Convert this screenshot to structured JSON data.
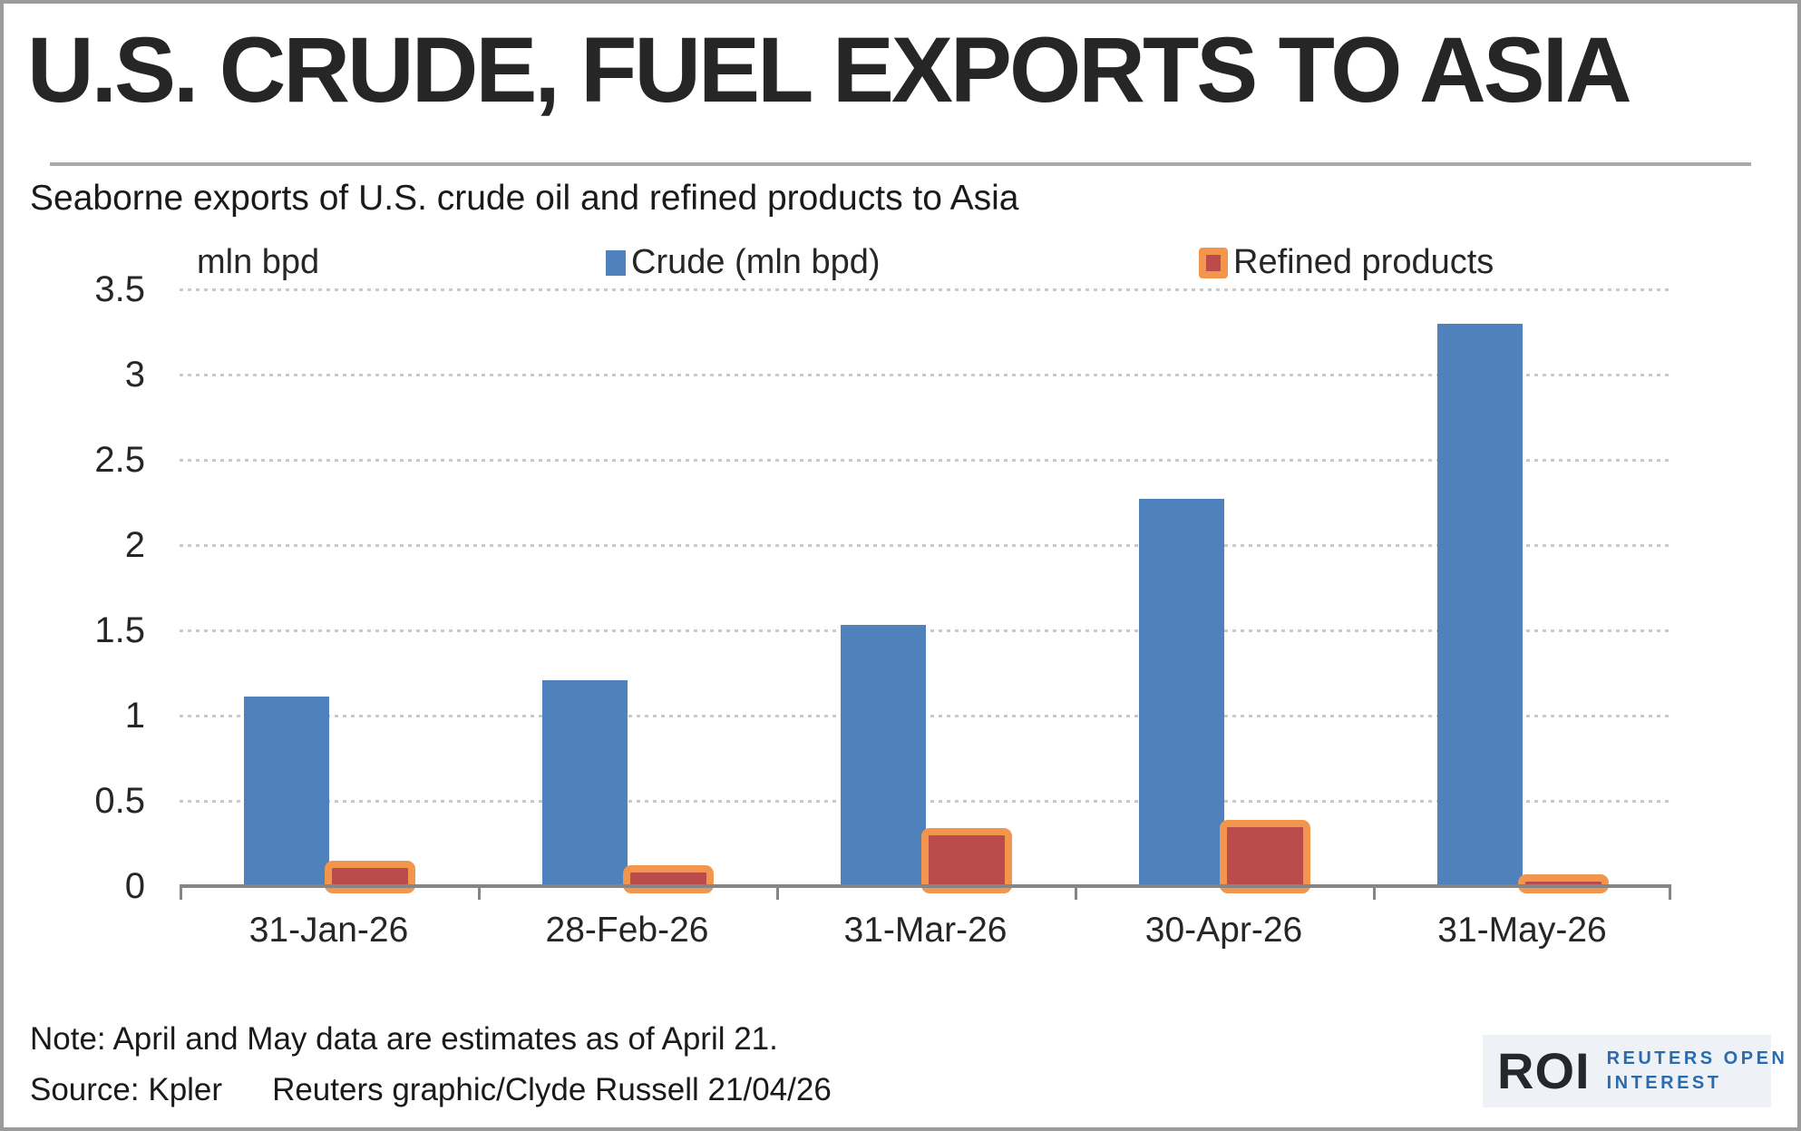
{
  "header": {
    "title": "U.S. CRUDE, FUEL EXPORTS TO ASIA",
    "subtitle": "Seaborne exports of U.S. crude oil and refined products to Asia"
  },
  "legend": {
    "unit_label": "mln bpd",
    "crude_label": "Crude (mln bpd)",
    "refined_label": "Refined products"
  },
  "footer": {
    "note": "Note: April and May data are estimates as of April 21.",
    "source": "Source: Kpler",
    "credit": "Reuters graphic/Clyde Russell 21/04/26"
  },
  "logo": {
    "mark": "ROI",
    "line1": "REUTERS OPEN",
    "line2": "INTEREST"
  },
  "colors": {
    "crude": "#4f81bd",
    "refined_fill": "#bc4c4c",
    "refined_border": "#f2954d",
    "axis": "#858585",
    "gridline": "#c9c9c9",
    "logo_bg": "#eef1f6",
    "logo_text": "#2a6bb0"
  },
  "chart_data": {
    "type": "bar",
    "title": "U.S. CRUDE, FUEL EXPORTS TO ASIA",
    "subtitle": "Seaborne exports of U.S. crude oil and refined products to Asia",
    "ylabel": "mln bpd",
    "xlabel": "",
    "ylim": [
      0,
      3.5
    ],
    "ytick_step": 0.5,
    "y_tick_labels": [
      "0",
      "0.5",
      "1",
      "1.5",
      "2",
      "2.5",
      "3",
      "3.5"
    ],
    "grid": "dotted-horizontal",
    "legend_position": "top",
    "categories": [
      "31-Jan-26",
      "28-Feb-26",
      "31-Mar-26",
      "30-Apr-26",
      "31-May-26"
    ],
    "series": [
      {
        "name": "Crude (mln bpd)",
        "color": "#4f81bd",
        "values": [
          1.11,
          1.21,
          1.53,
          2.27,
          3.3
        ]
      },
      {
        "name": "Refined products",
        "fill": "#bc4c4c",
        "border": "#f2954d",
        "values": [
          0.15,
          0.12,
          0.34,
          0.39,
          0.07
        ]
      }
    ]
  }
}
